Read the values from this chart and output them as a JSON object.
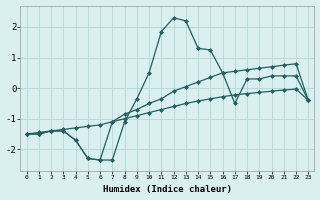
{
  "x": [
    0,
    1,
    2,
    3,
    4,
    5,
    6,
    7,
    8,
    9,
    10,
    11,
    12,
    13,
    14,
    15,
    16,
    17,
    18,
    19,
    20,
    21,
    22,
    23
  ],
  "line1": [
    -1.5,
    -1.5,
    -1.4,
    -1.4,
    -1.7,
    -2.3,
    -2.35,
    -2.35,
    -1.1,
    -0.35,
    0.5,
    1.85,
    2.3,
    2.2,
    1.3,
    1.25,
    0.5,
    -0.5,
    0.3,
    0.3,
    0.4,
    0.4,
    0.4,
    -0.4
  ],
  "line2": [
    -1.5,
    -1.5,
    -1.4,
    -1.4,
    -1.7,
    -2.3,
    -2.35,
    -1.1,
    -0.85,
    -0.7,
    -0.5,
    -0.35,
    -0.1,
    0.05,
    0.2,
    0.35,
    0.5,
    0.55,
    0.6,
    0.65,
    0.7,
    0.75,
    0.8,
    -0.4
  ],
  "line3": [
    -1.5,
    -1.45,
    -1.4,
    -1.35,
    -1.3,
    -1.25,
    -1.2,
    -1.1,
    -1.0,
    -0.9,
    -0.8,
    -0.7,
    -0.6,
    -0.5,
    -0.42,
    -0.35,
    -0.28,
    -0.22,
    -0.18,
    -0.14,
    -0.1,
    -0.06,
    -0.03,
    -0.4
  ],
  "bg_color": "#daf0f0",
  "grid_color": "#b8dada",
  "line_color": "#206060",
  "marker_size": 2.5,
  "xlabel": "Humidex (Indice chaleur)",
  "ylim": [
    -2.7,
    2.7
  ],
  "xlim": [
    -0.5,
    23.5
  ]
}
